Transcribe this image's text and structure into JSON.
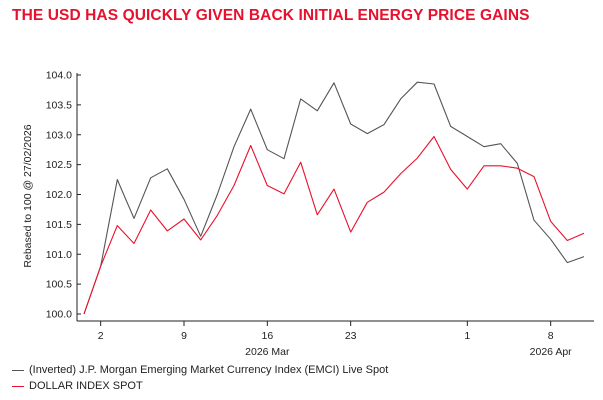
{
  "title": "THE USD HAS QUICKLY GIVEN BACK INITIAL ENERGY PRICE GAINS",
  "colors": {
    "title": "#e8112d",
    "emci": "#555555",
    "dxy": "#e8112d",
    "axis": "#222222"
  },
  "chart_data": {
    "type": "line",
    "title": "THE USD HAS QUICKLY GIVEN BACK INITIAL ENERGY PRICE GAINS",
    "xlabel": "",
    "ylabel": "Rebased to 100 @ 27/02/2026",
    "ylim": [
      100.0,
      104.0
    ],
    "yticks": [
      "100.0",
      "100.5",
      "101.0",
      "101.5",
      "102.0",
      "102.5",
      "103.0",
      "103.5",
      "104.0"
    ],
    "grid": false,
    "legend_position": "bottom-left",
    "x": [
      "2026-02-27",
      "2026-03-02",
      "2026-03-03",
      "2026-03-04",
      "2026-03-05",
      "2026-03-06",
      "2026-03-09",
      "2026-03-10",
      "2026-03-11",
      "2026-03-12",
      "2026-03-13",
      "2026-03-16",
      "2026-03-17",
      "2026-03-18",
      "2026-03-19",
      "2026-03-20",
      "2026-03-23",
      "2026-03-24",
      "2026-03-25",
      "2026-03-26",
      "2026-03-27",
      "2026-03-30",
      "2026-03-31",
      "2026-04-01",
      "2026-04-02",
      "2026-04-03",
      "2026-04-06",
      "2026-04-07",
      "2026-04-08",
      "2026-04-09",
      "2026-04-10"
    ],
    "x_ticks": [
      {
        "label": "2",
        "x": "2026-03-02"
      },
      {
        "label": "9",
        "x": "2026-03-09"
      },
      {
        "label": "16",
        "x": "2026-03-16"
      },
      {
        "label": "23",
        "x": "2026-03-23"
      },
      {
        "label": "1",
        "x": "2026-04-01"
      },
      {
        "label": "8",
        "x": "2026-04-08"
      }
    ],
    "x_group_labels": [
      {
        "label": "2026 Mar",
        "x": "2026-03-16"
      },
      {
        "label": "2026 Apr",
        "x": "2026-04-08"
      }
    ],
    "series": [
      {
        "name": "(Inverted) J.P. Morgan Emerging Market Currency Index (EMCI) Live Spot",
        "color": "#555555",
        "values": [
          100.0,
          100.8,
          102.25,
          101.6,
          102.28,
          102.43,
          101.92,
          101.3,
          102.0,
          102.8,
          103.43,
          102.75,
          102.6,
          103.6,
          103.4,
          103.87,
          103.18,
          103.02,
          103.17,
          103.6,
          103.88,
          103.85,
          103.14,
          102.97,
          102.8,
          102.85,
          102.52,
          101.57,
          101.25,
          100.86,
          100.96
        ]
      },
      {
        "name": "DOLLAR INDEX SPOT",
        "color": "#e8112d",
        "values": [
          100.0,
          100.8,
          101.48,
          101.18,
          101.74,
          101.39,
          101.59,
          101.24,
          101.65,
          102.15,
          102.82,
          102.15,
          102.01,
          102.54,
          101.66,
          102.09,
          101.37,
          101.87,
          102.04,
          102.35,
          102.61,
          102.97,
          102.42,
          102.09,
          102.48,
          102.48,
          102.44,
          102.3,
          101.55,
          101.23,
          101.35
        ]
      }
    ]
  }
}
